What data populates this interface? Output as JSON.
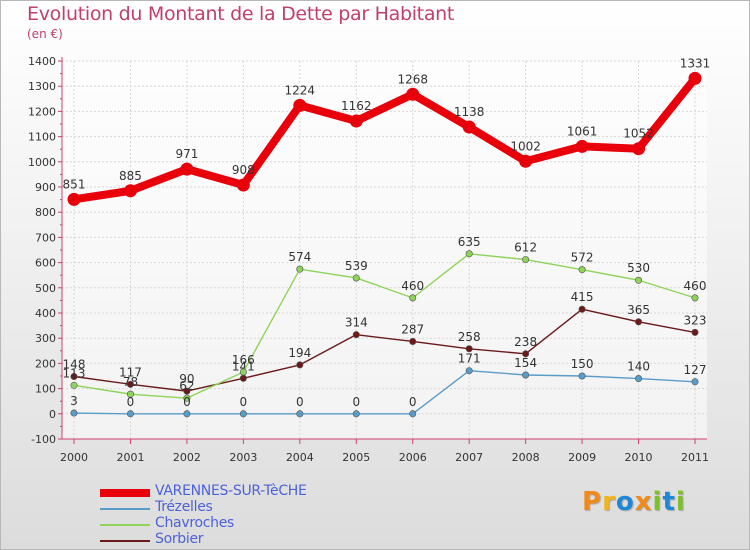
{
  "title": "Evolution du Montant de la Dette par Habitant",
  "subtitle": "(en €)",
  "logo": {
    "text": "Proxiti",
    "colors": [
      "#f08a1c",
      "#f0b41c",
      "#1e88d6",
      "#f08a1c",
      "#7fbf2a",
      "#1e88d6",
      "#7fbf2a"
    ]
  },
  "chart_data": {
    "type": "line",
    "x": [
      "2000",
      "2001",
      "2002",
      "2003",
      "2004",
      "2005",
      "2006",
      "2007",
      "2008",
      "2009",
      "2010",
      "2011"
    ],
    "yticks": [
      "-100",
      "0",
      "100",
      "200",
      "300",
      "400",
      "500",
      "600",
      "700",
      "800",
      "900",
      "1000",
      "1100",
      "1200",
      "1300",
      "1400"
    ],
    "ylim": [
      -100,
      1400
    ],
    "grid": true,
    "legend_position": "bottom-left",
    "series": [
      {
        "name": "VARENNES-SUR-TèCHE",
        "color": "#e8000b",
        "values": [
          851,
          885,
          971,
          908,
          1224,
          1162,
          1268,
          1138,
          1002,
          1061,
          1052,
          1331
        ],
        "labels": [
          "851",
          "885",
          "971",
          "908",
          "1224",
          "1162",
          "1268",
          "1138",
          "1002",
          "1061",
          "1052",
          "1331"
        ]
      },
      {
        "name": "Trézelles",
        "color": "#5a9cc8",
        "values": [
          3,
          0,
          0,
          0,
          0,
          0,
          0,
          171,
          154,
          150,
          140,
          127
        ],
        "labels": [
          "3",
          "0",
          "0",
          "0",
          "0",
          "0",
          "0",
          "171",
          "154",
          "150",
          "140",
          "127"
        ]
      },
      {
        "name": "Chavroches",
        "color": "#8ed45a",
        "values": [
          113,
          78,
          62,
          166,
          574,
          539,
          460,
          635,
          612,
          572,
          530,
          460
        ],
        "labels": [
          "113",
          "78",
          "62",
          "166",
          "574",
          "539",
          "460",
          "635",
          "612",
          "572",
          "530",
          "460"
        ]
      },
      {
        "name": "Sorbier",
        "color": "#6b1a1a",
        "values": [
          148,
          117,
          90,
          141,
          194,
          314,
          287,
          258,
          238,
          415,
          365,
          323
        ],
        "labels": [
          "148",
          "117",
          "90",
          "141",
          "194",
          "314",
          "287",
          "258",
          "238",
          "415",
          "365",
          "323"
        ]
      }
    ]
  }
}
